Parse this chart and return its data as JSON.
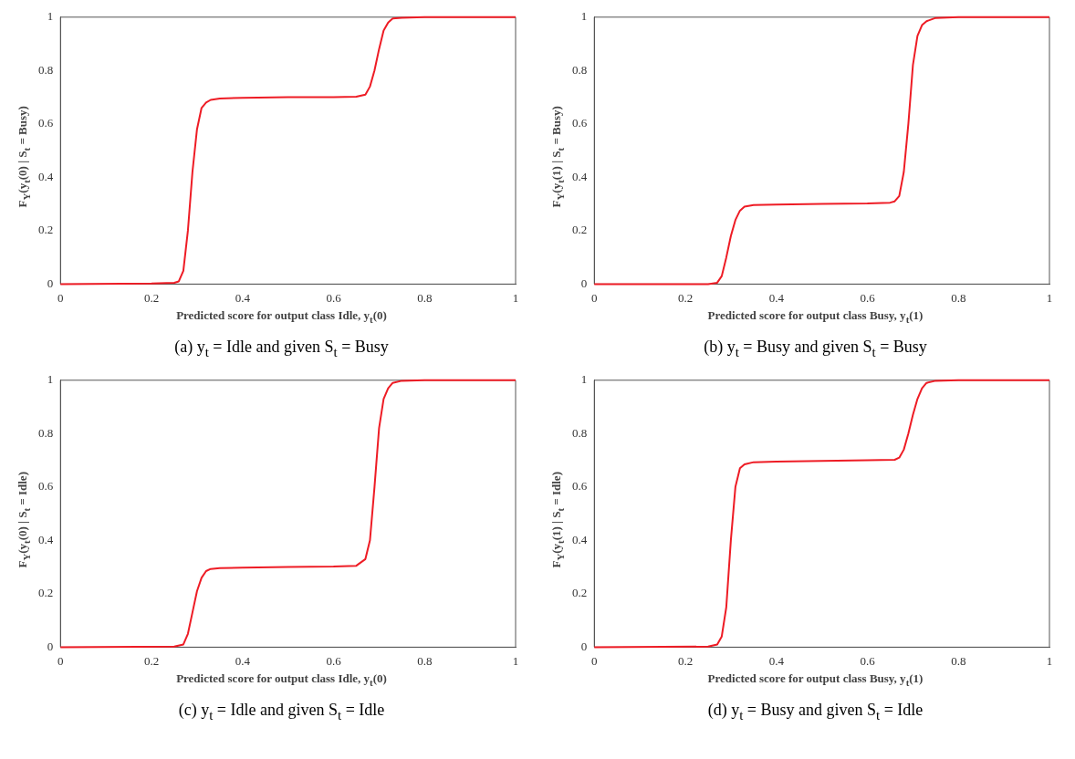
{
  "chart_data": [
    {
      "type": "line",
      "title": "(a) y$_{t}$ = Idle and given S$_{t}$ = Busy",
      "xlabel": "Predicted score for output class Idle, y$_{t}$(0)",
      "ylabel": "F$_{Y}$(y$_{t}$(0) | S$_{t}$ = Busy)",
      "color": "#ee1c25",
      "xlim": [
        0,
        1
      ],
      "ylim": [
        0,
        1
      ],
      "xticks": [
        0,
        0.2,
        0.4,
        0.6,
        0.8,
        1
      ],
      "yticks": [
        0,
        0.2,
        0.4,
        0.6,
        0.8,
        1
      ],
      "x": [
        0,
        0.2,
        0.25,
        0.26,
        0.27,
        0.28,
        0.29,
        0.3,
        0.31,
        0.32,
        0.33,
        0.35,
        0.4,
        0.5,
        0.6,
        0.65,
        0.67,
        0.68,
        0.69,
        0.7,
        0.71,
        0.72,
        0.73,
        0.75,
        0.8,
        1
      ],
      "values": [
        0,
        0.002,
        0.005,
        0.01,
        0.05,
        0.2,
        0.42,
        0.58,
        0.66,
        0.68,
        0.69,
        0.695,
        0.698,
        0.7,
        0.7,
        0.702,
        0.71,
        0.74,
        0.8,
        0.88,
        0.95,
        0.98,
        0.995,
        0.998,
        1,
        1
      ]
    },
    {
      "type": "line",
      "title": "(b) y$_{t}$ = Busy and given S$_{t}$ = Busy",
      "xlabel": "Predicted score for output class Busy, y$_{t}$(1)",
      "ylabel": "F$_{Y}$(y$_{t}$(1) | S$_{t}$ = Busy)",
      "color": "#ee1c25",
      "xlim": [
        0,
        1
      ],
      "ylim": [
        0,
        1
      ],
      "xticks": [
        0,
        0.2,
        0.4,
        0.6,
        0.8,
        1
      ],
      "yticks": [
        0,
        0.2,
        0.4,
        0.6,
        0.8,
        1
      ],
      "x": [
        0,
        0.25,
        0.27,
        0.28,
        0.29,
        0.3,
        0.31,
        0.32,
        0.33,
        0.35,
        0.4,
        0.5,
        0.6,
        0.65,
        0.66,
        0.67,
        0.68,
        0.69,
        0.7,
        0.71,
        0.72,
        0.73,
        0.75,
        0.8,
        1
      ],
      "values": [
        0,
        0,
        0.005,
        0.03,
        0.1,
        0.18,
        0.24,
        0.275,
        0.29,
        0.296,
        0.298,
        0.3,
        0.302,
        0.305,
        0.31,
        0.33,
        0.42,
        0.6,
        0.82,
        0.93,
        0.97,
        0.985,
        0.997,
        1,
        1
      ]
    },
    {
      "type": "line",
      "title": "(c) y$_{t}$ = Idle and given S$_{t}$ = Idle",
      "xlabel": "Predicted score for output class Idle, y$_{t}$(0)",
      "ylabel": "F$_{Y}$(y$_{t}$(0) | S$_{t}$ = Idle)",
      "color": "#ee1c25",
      "xlim": [
        0,
        1
      ],
      "ylim": [
        0,
        1
      ],
      "xticks": [
        0,
        0.2,
        0.4,
        0.6,
        0.8,
        1
      ],
      "yticks": [
        0,
        0.2,
        0.4,
        0.6,
        0.8,
        1
      ],
      "x": [
        0,
        0.25,
        0.27,
        0.28,
        0.29,
        0.3,
        0.31,
        0.32,
        0.33,
        0.35,
        0.4,
        0.5,
        0.6,
        0.65,
        0.67,
        0.68,
        0.69,
        0.7,
        0.71,
        0.72,
        0.73,
        0.75,
        0.8,
        1
      ],
      "values": [
        0,
        0.002,
        0.01,
        0.05,
        0.13,
        0.21,
        0.26,
        0.285,
        0.293,
        0.296,
        0.298,
        0.3,
        0.302,
        0.305,
        0.33,
        0.4,
        0.6,
        0.82,
        0.93,
        0.97,
        0.99,
        0.998,
        1,
        1
      ]
    },
    {
      "type": "line",
      "title": "(d) y$_{t}$ = Busy and given S$_{t}$ = Idle",
      "xlabel": "Predicted score for output class Busy, y$_{t}$(1)",
      "ylabel": "F$_{Y}$(y$_{t}$(1) | S$_{t}$ = Idle)",
      "color": "#ee1c25",
      "xlim": [
        0,
        1
      ],
      "ylim": [
        0,
        1
      ],
      "xticks": [
        0,
        0.2,
        0.4,
        0.6,
        0.8,
        1
      ],
      "yticks": [
        0,
        0.2,
        0.4,
        0.6,
        0.8,
        1
      ],
      "x": [
        0,
        0.25,
        0.27,
        0.28,
        0.29,
        0.3,
        0.31,
        0.32,
        0.33,
        0.35,
        0.4,
        0.5,
        0.6,
        0.66,
        0.67,
        0.68,
        0.69,
        0.7,
        0.71,
        0.72,
        0.73,
        0.75,
        0.8,
        1
      ],
      "values": [
        0,
        0.002,
        0.01,
        0.04,
        0.15,
        0.4,
        0.6,
        0.67,
        0.685,
        0.693,
        0.695,
        0.698,
        0.7,
        0.702,
        0.71,
        0.74,
        0.8,
        0.87,
        0.93,
        0.97,
        0.99,
        0.998,
        1,
        1
      ]
    }
  ]
}
